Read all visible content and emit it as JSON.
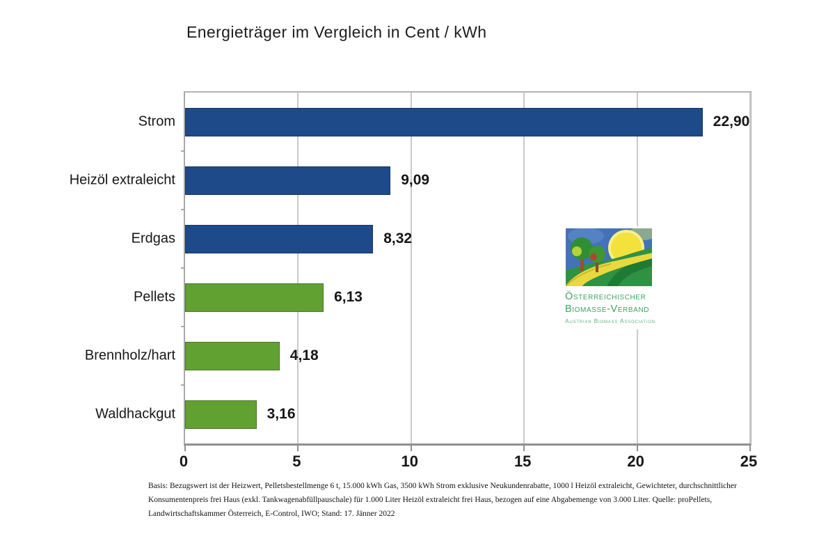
{
  "title": "Energieträger im Vergleich in Cent / kWh",
  "chart_data": {
    "type": "bar",
    "orientation": "horizontal",
    "title": "Energieträger im Vergleich in Cent / kWh",
    "xlabel": "",
    "ylabel": "",
    "categories": [
      "Strom",
      "Heizöl extraleicht",
      "Erdgas",
      "Pellets",
      "Brennholz/hart",
      "Waldhackgut"
    ],
    "values": [
      22.9,
      9.09,
      8.32,
      6.13,
      4.18,
      3.16
    ],
    "value_labels": [
      "22,90",
      "9,09",
      "8,32",
      "6,13",
      "4,18",
      "3,16"
    ],
    "bar_colors": [
      "#1e4a8a",
      "#1e4a8a",
      "#1e4a8a",
      "#61a132",
      "#61a132",
      "#61a132"
    ],
    "xlim": [
      0,
      25
    ],
    "x_ticks": [
      0,
      5,
      10,
      15,
      20,
      25
    ],
    "grid": "vertical-major",
    "legend": "none",
    "unit": "Cent / kWh"
  },
  "colors": {
    "bar_blue": "#1e4a8a",
    "bar_green": "#61a132",
    "gridline": "#c9c9c9",
    "axis": "#8f8f8f",
    "logo_green": "#3aa561",
    "text": "#1a1a1a"
  },
  "logo": {
    "org_line1": "Österreichischer",
    "org_line2": "Biomasse-Verband",
    "org_sub": "Austrian Biomass Association"
  },
  "footnote": {
    "line1": "Basis: Bezugswert ist der Heizwert, Pelletsbestellmenge 6 t, 15.000 kWh Gas, 3500 kWh Strom exklusive Neukundenrabatte, 1000 l Heizöl extraleicht, Gewichteter, durchschnittlicher",
    "line2": "Konsumentenpreis frei Haus (exkl. Tankwagenabfüllpauschale) für 1.000 Liter Heizöl extraleicht frei Haus, bezogen auf eine Abgabemenge von 3.000 Liter. Quelle: proPellets,",
    "line3": "Landwirtschaftskammer Österreich, E-Control, IWO; Stand: 17. Jänner 2022"
  }
}
